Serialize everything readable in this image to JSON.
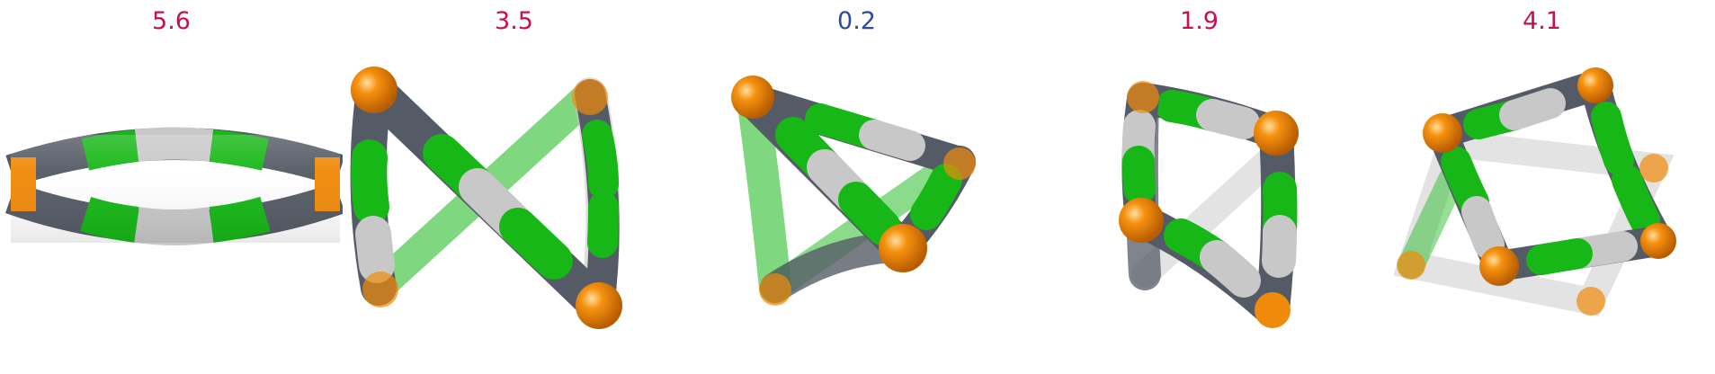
{
  "panels": [
    {
      "value": "5.6",
      "color": "#c8104e"
    },
    {
      "value": "3.5",
      "color": "#c8104e"
    },
    {
      "value": "0.2",
      "color": "#2a4a9a"
    },
    {
      "value": "1.9",
      "color": "#c8104e"
    },
    {
      "value": "4.1",
      "color": "#c8104e"
    }
  ],
  "tube_colors": {
    "orange": "#f08a0a",
    "dark_gray": "#555b66",
    "light_gray": "#c8c8c8",
    "green": "#16b716"
  }
}
